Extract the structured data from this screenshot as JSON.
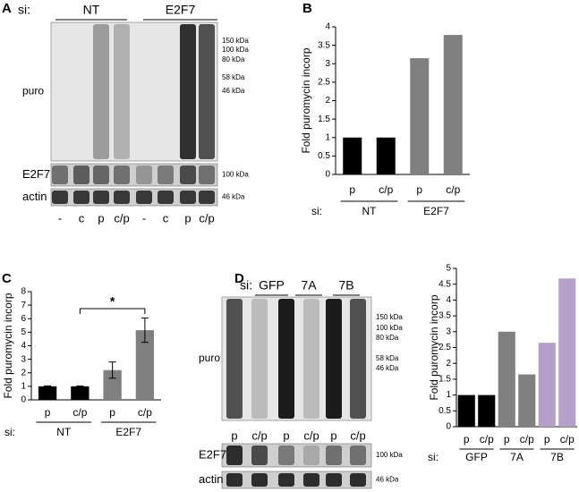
{
  "figure": {
    "panel_labels": [
      "A",
      "B",
      "C",
      "D"
    ]
  },
  "blot_a": {
    "si_label": "si:",
    "groups": [
      "NT",
      "E2F7"
    ],
    "rows": [
      "puro",
      "E2F7",
      "actin"
    ],
    "puro_markers": [
      "150 kDa",
      "100 kDa",
      "80 kDa",
      "58 kDa",
      "46 kDa"
    ],
    "e2f7_marker": "100 kDa",
    "actin_marker": "46 kDa",
    "lanes": [
      "-",
      "c",
      "p",
      "c/p",
      "-",
      "c",
      "p",
      "c/p"
    ]
  },
  "blot_d": {
    "si_label": "si:",
    "groups": [
      "GFP",
      "7A",
      "7B"
    ],
    "rows": [
      "puro",
      "E2F7",
      "actin"
    ],
    "puro_markers": [
      "150 kDa",
      "100 kDa",
      "80 kDa",
      "58 kDa",
      "46 kDa"
    ],
    "e2f7_marker": "100 kDa",
    "actin_marker": "46  kDa",
    "lanes": [
      "p",
      "c/p",
      "p",
      "c/p",
      "p",
      "c/p"
    ]
  },
  "chart_data": [
    {
      "type": "bar",
      "ylabel": "Fold puromycin incorp",
      "si_label": "si:",
      "categories": [
        "p",
        "c/p",
        "p",
        "c/p"
      ],
      "groups": [
        "NT",
        "E2F7"
      ],
      "values": [
        1,
        1,
        3.15,
        3.78
      ],
      "colors": [
        "#000000",
        "#000000",
        "#808080",
        "#808080"
      ],
      "ylim": [
        0,
        4
      ],
      "yticks": [
        0,
        0.5,
        1,
        1.5,
        2,
        2.5,
        3,
        3.5,
        4
      ]
    },
    {
      "type": "bar",
      "ylabel": "Fold puromycin incorp",
      "si_label": "si:",
      "categories": [
        "p",
        "c/p",
        "p",
        "c/p"
      ],
      "groups": [
        "NT",
        "E2F7"
      ],
      "values": [
        1,
        1,
        2.2,
        5.15
      ],
      "errors": [
        0.03,
        0.03,
        0.6,
        0.9
      ],
      "colors": [
        "#000000",
        "#000000",
        "#808080",
        "#808080"
      ],
      "annotation": "*",
      "ylim": [
        0,
        8
      ],
      "yticks": [
        0,
        1,
        2,
        3,
        4,
        5,
        6,
        7,
        8
      ]
    },
    {
      "type": "bar",
      "ylabel": "Fold puromycin incorp",
      "si_label": "si:",
      "categories": [
        "p",
        "c/p",
        "p",
        "c/p",
        "p",
        "c/p"
      ],
      "groups": [
        "GFP",
        "7A",
        "7B"
      ],
      "values": [
        1,
        1,
        3.0,
        1.65,
        2.65,
        4.68
      ],
      "colors": [
        "#000000",
        "#000000",
        "#808080",
        "#808080",
        "#b4a0c8",
        "#b4a0c8"
      ],
      "ylim": [
        0,
        5
      ],
      "yticks": [
        0,
        0.5,
        1,
        1.5,
        2,
        2.5,
        3,
        3.5,
        4,
        4.5,
        5
      ]
    }
  ]
}
